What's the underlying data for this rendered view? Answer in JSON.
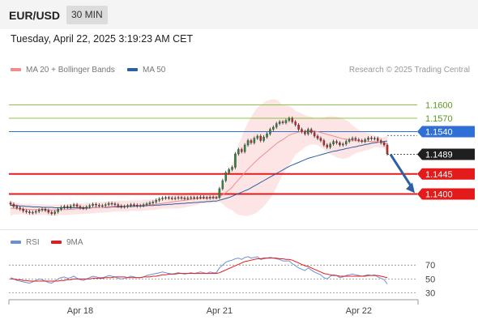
{
  "header": {
    "pair": "EUR/USD",
    "timeframe": "30 MIN"
  },
  "timestamp": "Tuesday, April 22, 2025 3:19:23 AM CET",
  "legend": {
    "items": [
      {
        "label": "MA 20 + Bollinger Bands",
        "color": "#f28b8b"
      },
      {
        "label": "MA 50",
        "color": "#2e5fa3"
      }
    ],
    "credit": "Research © 2025 Trading Central"
  },
  "rsi_legend": {
    "items": [
      {
        "label": "RSI",
        "color": "#6b8fd6"
      },
      {
        "label": "9MA",
        "color": "#e31b1b"
      }
    ]
  },
  "chart_data": [
    {
      "type": "candlestick",
      "title": "",
      "x_ticks": [
        "Apr 18",
        "Apr 21",
        "Apr 22"
      ],
      "ylim": [
        1.133,
        1.167
      ],
      "grid": false,
      "legend_position": "top-left",
      "current_price": {
        "value": 1.1489,
        "label": "1.1489"
      },
      "levels": [
        {
          "value": 1.16,
          "label": "1.1600",
          "color": "#8cc44a",
          "kind": "target"
        },
        {
          "value": 1.157,
          "label": "1.1570",
          "color": "#8cc44a",
          "kind": "target"
        },
        {
          "value": 1.154,
          "label": "1.1540",
          "color": "#2f6fd6",
          "kind": "pivot"
        },
        {
          "value": 1.1445,
          "label": "1.1445",
          "color": "#e31b1b",
          "kind": "support"
        },
        {
          "value": 1.14,
          "label": "1.1400",
          "color": "#e31b1b",
          "kind": "support"
        }
      ],
      "close_series": [
        1.1377,
        1.1372,
        1.1369,
        1.1366,
        1.1362,
        1.136,
        1.1358,
        1.1359,
        1.1361,
        1.1364,
        1.1366,
        1.1363,
        1.1359,
        1.1356,
        1.136,
        1.1366,
        1.137,
        1.1372,
        1.137,
        1.1373,
        1.1376,
        1.1372,
        1.1369,
        1.1368,
        1.1371,
        1.1374,
        1.1377,
        1.1375,
        1.1373,
        1.1374,
        1.1376,
        1.1379,
        1.1378,
        1.1376,
        1.1373,
        1.1371,
        1.1372,
        1.1374,
        1.1376,
        1.1375,
        1.1373,
        1.1374,
        1.1376,
        1.1378,
        1.138,
        1.1382,
        1.1386,
        1.1389,
        1.1391,
        1.1392,
        1.1391,
        1.139,
        1.1391,
        1.1392,
        1.1391,
        1.139,
        1.1391,
        1.1392,
        1.1391,
        1.1392,
        1.1393,
        1.1392,
        1.1391,
        1.1393,
        1.1392,
        1.1392,
        1.1412,
        1.143,
        1.1448,
        1.1455,
        1.146,
        1.149,
        1.15,
        1.1495,
        1.151,
        1.152,
        1.1515,
        1.1525,
        1.153,
        1.152,
        1.1528,
        1.1535,
        1.1545,
        1.155,
        1.1558,
        1.1562,
        1.156,
        1.1565,
        1.157,
        1.1562,
        1.1555,
        1.1545,
        1.154,
        1.1535,
        1.1545,
        1.1538,
        1.153,
        1.1525,
        1.152,
        1.151,
        1.1505,
        1.1512,
        1.1518,
        1.1515,
        1.151,
        1.1512,
        1.1518,
        1.1522,
        1.1525,
        1.1522,
        1.152,
        1.1518,
        1.1522,
        1.1526,
        1.1524,
        1.1525,
        1.152,
        1.1515,
        1.151,
        1.149
      ],
      "ma20": [
        1.1368,
        1.1368,
        1.1367,
        1.1367,
        1.1366,
        1.1366,
        1.1365,
        1.1365,
        1.1365,
        1.1365,
        1.1365,
        1.1365,
        1.1364,
        1.1364,
        1.1364,
        1.1364,
        1.1365,
        1.1365,
        1.1365,
        1.1366,
        1.1366,
        1.1367,
        1.1367,
        1.1367,
        1.1368,
        1.1368,
        1.1369,
        1.1369,
        1.137,
        1.137,
        1.1371,
        1.1371,
        1.1372,
        1.1372,
        1.1373,
        1.1373,
        1.1373,
        1.1373,
        1.1374,
        1.1374,
        1.1374,
        1.1374,
        1.1375,
        1.1375,
        1.1376,
        1.1376,
        1.1377,
        1.1378,
        1.1379,
        1.138,
        1.1381,
        1.1382,
        1.1383,
        1.1384,
        1.1385,
        1.1386,
        1.1387,
        1.1388,
        1.1389,
        1.139,
        1.139,
        1.1391,
        1.1391,
        1.1391,
        1.1392,
        1.1392,
        1.1394,
        1.1398,
        1.1403,
        1.1409,
        1.1415,
        1.1424,
        1.1432,
        1.144,
        1.1448,
        1.1456,
        1.1463,
        1.147,
        1.1477,
        1.1483,
        1.1489,
        1.1495,
        1.1501,
        1.1507,
        1.1513,
        1.1518,
        1.1522,
        1.1527,
        1.1532,
        1.1535,
        1.1537,
        1.1539,
        1.154,
        1.1541,
        1.1542,
        1.1542,
        1.1541,
        1.154,
        1.1538,
        1.1536,
        1.1534,
        1.1532,
        1.153,
        1.1528,
        1.1526,
        1.1524,
        1.1523,
        1.1522,
        1.1521,
        1.152,
        1.1519,
        1.1518,
        1.1518,
        1.1518,
        1.1518,
        1.1518,
        1.1517,
        1.1516,
        1.1515,
        1.1513
      ],
      "ma50": [
        1.1375,
        1.1374,
        1.1374,
        1.1373,
        1.1373,
        1.1372,
        1.1372,
        1.1371,
        1.1371,
        1.1371,
        1.137,
        1.137,
        1.137,
        1.137,
        1.1369,
        1.1369,
        1.1369,
        1.1369,
        1.1369,
        1.1369,
        1.1369,
        1.1369,
        1.1369,
        1.1369,
        1.1369,
        1.1369,
        1.1369,
        1.137,
        1.137,
        1.137,
        1.137,
        1.137,
        1.1371,
        1.1371,
        1.1371,
        1.1371,
        1.1372,
        1.1372,
        1.1372,
        1.1372,
        1.1373,
        1.1373,
        1.1373,
        1.1374,
        1.1374,
        1.1374,
        1.1375,
        1.1375,
        1.1376,
        1.1376,
        1.1377,
        1.1377,
        1.1378,
        1.1378,
        1.1379,
        1.1379,
        1.138,
        1.138,
        1.1381,
        1.1381,
        1.1382,
        1.1382,
        1.1383,
        1.1383,
        1.1384,
        1.1384,
        1.1386,
        1.1388,
        1.139,
        1.1392,
        1.1395,
        1.1398,
        1.1401,
        1.1404,
        1.1407,
        1.141,
        1.1414,
        1.1418,
        1.1422,
        1.1426,
        1.143,
        1.1434,
        1.1438,
        1.1442,
        1.1446,
        1.145,
        1.1454,
        1.1458,
        1.1462,
        1.1465,
        1.1468,
        1.1471,
        1.1474,
        1.1477,
        1.148,
        1.1482,
        1.1484,
        1.1486,
        1.1488,
        1.149,
        1.1492,
        1.1494,
        1.1496,
        1.1497,
        1.1499,
        1.15,
        1.1502,
        1.1503,
        1.1505,
        1.1506,
        1.1508,
        1.1509,
        1.1511,
        1.1512,
        1.1514,
        1.1515,
        1.1516,
        1.1517,
        1.1518,
        1.1519
      ],
      "projection": {
        "from_value": 1.1489,
        "to_value": 1.1402,
        "direction": "down"
      }
    },
    {
      "type": "line",
      "title": "",
      "y_ticks": [
        70,
        50,
        30
      ],
      "ylim": [
        18,
        90
      ],
      "series": [
        {
          "name": "RSI",
          "color": "#6b8fd6",
          "values": [
            52,
            50,
            48,
            47,
            46,
            45,
            44,
            46,
            48,
            50,
            49,
            47,
            45,
            44,
            47,
            50,
            52,
            53,
            51,
            52,
            54,
            51,
            49,
            48,
            50,
            52,
            54,
            53,
            52,
            52,
            53,
            55,
            54,
            53,
            51,
            50,
            51,
            52,
            54,
            53,
            52,
            52,
            53,
            55,
            56,
            57,
            58,
            59,
            60,
            59,
            58,
            57,
            58,
            59,
            58,
            57,
            58,
            59,
            58,
            59,
            60,
            59,
            58,
            60,
            59,
            59,
            66,
            70,
            74,
            76,
            77,
            79,
            80,
            78,
            81,
            82,
            80,
            81,
            82,
            78,
            79,
            80,
            81,
            80,
            79,
            78,
            76,
            76,
            76,
            72,
            69,
            66,
            64,
            62,
            66,
            63,
            60,
            58,
            56,
            52,
            50,
            54,
            56,
            55,
            52,
            53,
            55,
            56,
            57,
            56,
            55,
            54,
            55,
            56,
            55,
            56,
            53,
            51,
            49,
            43
          ]
        },
        {
          "name": "9MA",
          "color": "#e31b1b",
          "values": [
            50,
            50,
            49,
            49,
            48,
            48,
            47,
            47,
            47,
            47,
            47,
            47,
            47,
            47,
            47,
            47,
            48,
            48,
            49,
            49,
            50,
            50,
            50,
            50,
            50,
            50,
            51,
            51,
            51,
            51,
            52,
            52,
            52,
            53,
            53,
            53,
            53,
            52,
            52,
            52,
            52,
            52,
            53,
            53,
            53,
            54,
            54,
            55,
            56,
            56,
            57,
            57,
            57,
            58,
            58,
            58,
            58,
            58,
            58,
            58,
            58,
            58,
            58,
            58,
            58,
            58,
            59,
            61,
            63,
            65,
            67,
            69,
            71,
            73,
            75,
            76,
            77,
            78,
            79,
            79,
            80,
            80,
            80,
            80,
            80,
            79,
            79,
            78,
            78,
            77,
            75,
            73,
            71,
            69,
            68,
            66,
            64,
            62,
            60,
            58,
            57,
            56,
            55,
            55,
            54,
            54,
            54,
            54,
            54,
            54,
            54,
            54,
            54,
            55,
            55,
            55,
            55,
            54,
            53,
            52
          ]
        }
      ]
    }
  ]
}
